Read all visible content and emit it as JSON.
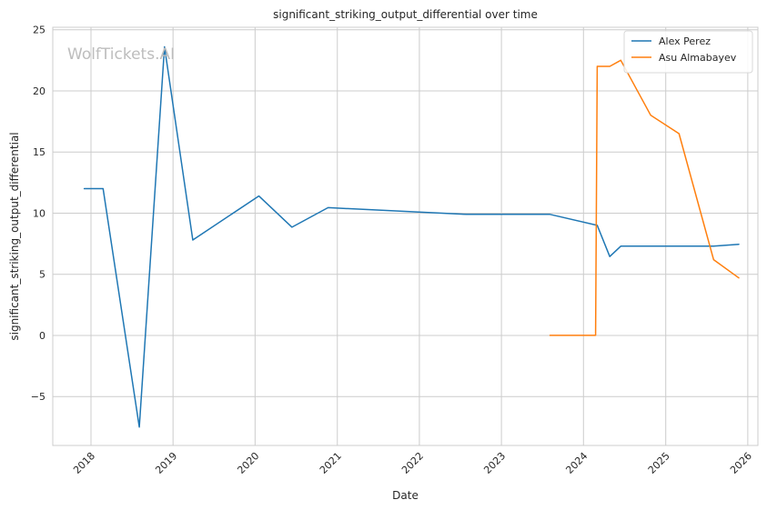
{
  "chart_data": {
    "type": "line",
    "title": "significant_striking_output_differential over time",
    "xlabel": "Date",
    "ylabel": "significant_striking_output_differential",
    "watermark": "WolfTickets.AI",
    "x_axis_type": "date",
    "xlim": [
      "2017-07-15",
      "2026-02-15"
    ],
    "ylim": [
      -9,
      25.2
    ],
    "x_ticks": [
      "2018",
      "2019",
      "2020",
      "2021",
      "2022",
      "2023",
      "2024",
      "2025",
      "2026"
    ],
    "y_ticks": [
      -5,
      0,
      5,
      10,
      15,
      20,
      25
    ],
    "y_tick_labels": [
      "−5",
      "0",
      "5",
      "10",
      "15",
      "20",
      "25"
    ],
    "grid": true,
    "legend_position": "top-right",
    "series": [
      {
        "name": "Alex Perez",
        "color": "#1f77b4",
        "points": [
          {
            "x": "2017-12-02",
            "y": 12.0
          },
          {
            "x": "2018-02-24",
            "y": 12.0
          },
          {
            "x": "2018-08-04",
            "y": -7.5
          },
          {
            "x": "2018-11-24",
            "y": 23.6
          },
          {
            "x": "2019-03-30",
            "y": 7.8
          },
          {
            "x": "2020-01-18",
            "y": 11.4
          },
          {
            "x": "2020-06-13",
            "y": 8.85
          },
          {
            "x": "2020-11-21",
            "y": 10.45
          },
          {
            "x": "2022-07-30",
            "y": 9.9
          },
          {
            "x": "2023-08-05",
            "y": 9.9
          },
          {
            "x": "2024-03-02",
            "y": 9.0
          },
          {
            "x": "2024-04-27",
            "y": 6.45
          },
          {
            "x": "2024-06-15",
            "y": 7.3
          },
          {
            "x": "2025-08-02",
            "y": 7.3
          },
          {
            "x": "2025-11-22",
            "y": 7.45
          }
        ]
      },
      {
        "name": "Asu Almabayev",
        "color": "#ff7f0e",
        "points": [
          {
            "x": "2023-08-05",
            "y": 0.0
          },
          {
            "x": "2024-02-24",
            "y": 0.0
          },
          {
            "x": "2024-03-02",
            "y": 22.0
          },
          {
            "x": "2024-04-27",
            "y": 22.0
          },
          {
            "x": "2024-06-15",
            "y": 22.5
          },
          {
            "x": "2024-10-26",
            "y": 18.0
          },
          {
            "x": "2025-03-01",
            "y": 16.5
          },
          {
            "x": "2025-08-02",
            "y": 6.2
          },
          {
            "x": "2025-11-22",
            "y": 4.7
          }
        ]
      }
    ]
  }
}
